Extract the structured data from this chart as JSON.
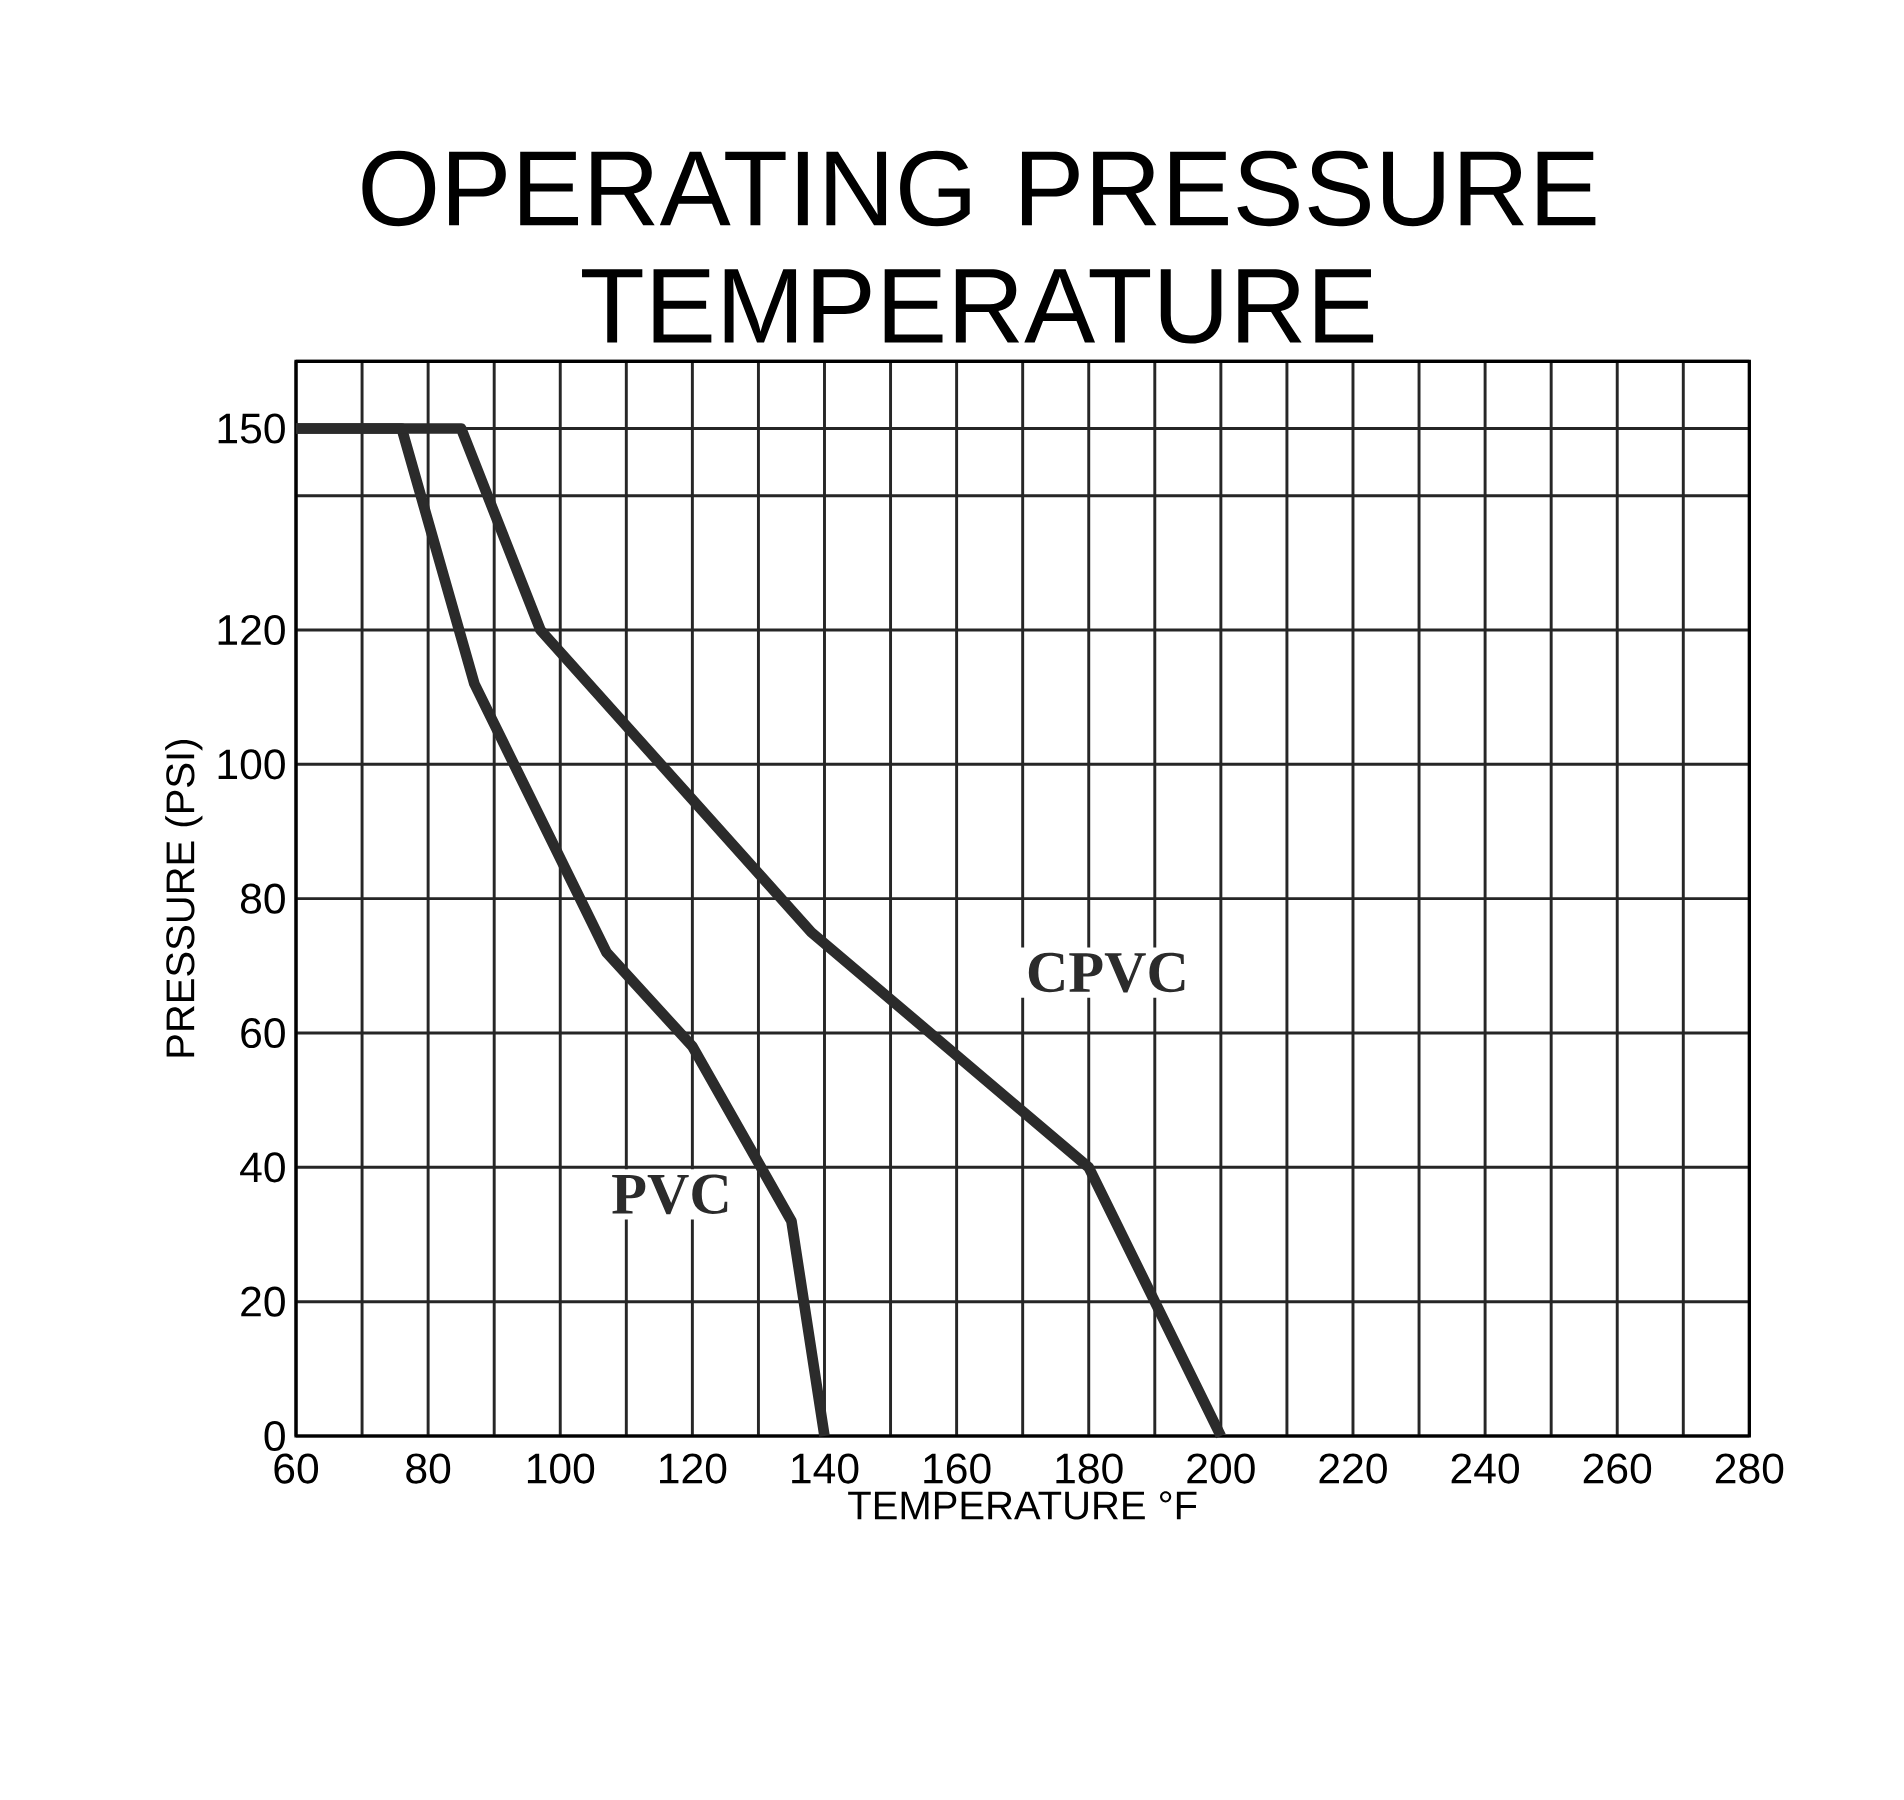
{
  "chart_data": {
    "type": "line",
    "title": "OPERATING PRESSURE TEMPERATURE",
    "xlabel": "TEMPERATURE °F",
    "ylabel": "PRESSURE (PSI)",
    "xlim": [
      60,
      280
    ],
    "ylim": [
      0,
      160
    ],
    "xticks": [
      60,
      {
        "value": 70,
        "label": null
      },
      80,
      {
        "value": 90,
        "label": null
      },
      100,
      {
        "value": 110,
        "label": null
      },
      120,
      {
        "value": 130,
        "label": null
      },
      140,
      {
        "value": 150,
        "label": null
      },
      160,
      {
        "value": 170,
        "label": null
      },
      180,
      {
        "value": 190,
        "label": null
      },
      200,
      {
        "value": 210,
        "label": null
      },
      220,
      {
        "value": 230,
        "label": null
      },
      240,
      {
        "value": 250,
        "label": null
      },
      260,
      {
        "value": 270,
        "label": null
      },
      280
    ],
    "yticks": [
      0,
      20,
      40,
      60,
      80,
      100,
      120,
      {
        "value": 140,
        "label": null
      },
      150,
      {
        "value": 160,
        "label": null
      }
    ],
    "grid": true,
    "series": [
      {
        "name": "PVC",
        "color": "#2b2b2b",
        "x": [
          60,
          76,
          87,
          107,
          120,
          135,
          140
        ],
        "values": [
          150,
          150,
          112,
          72,
          58,
          32,
          0
        ]
      },
      {
        "name": "CPVC",
        "color": "#2b2b2b",
        "x": [
          60,
          85,
          97,
          138,
          180,
          200
        ],
        "values": [
          150,
          150,
          120,
          75,
          40,
          0
        ]
      }
    ]
  }
}
